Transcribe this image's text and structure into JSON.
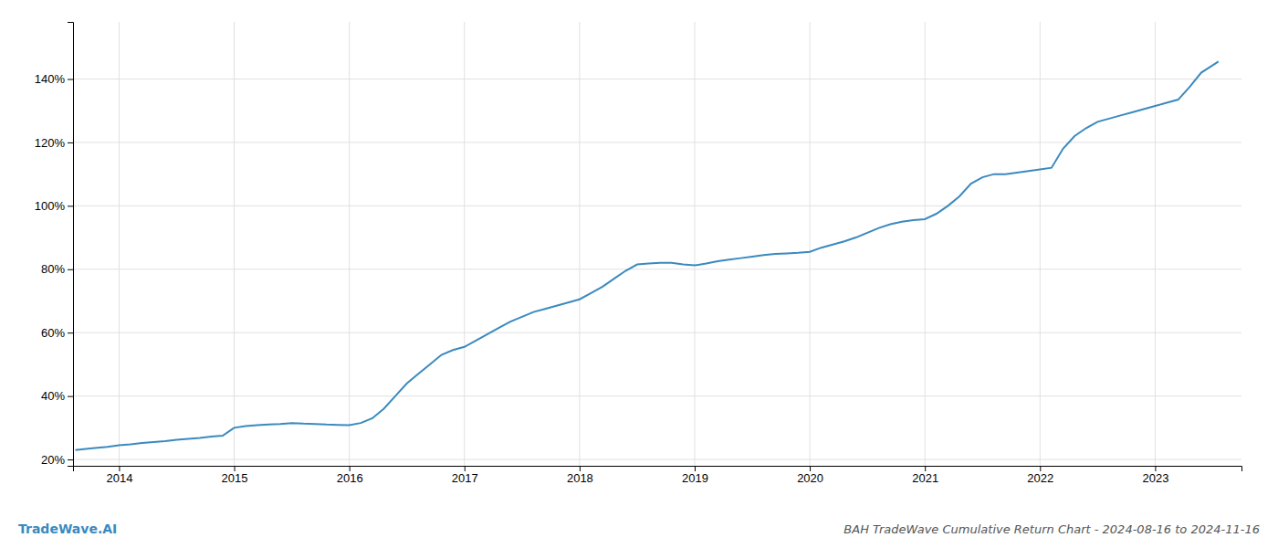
{
  "chart_data": {
    "type": "line",
    "title": "BAH TradeWave Cumulative Return Chart - 2024-08-16 to 2024-11-16",
    "annotations": [
      "TradeWave.AI"
    ],
    "color": "#3a8abf",
    "grid": true,
    "x": [
      2013.62,
      2013.75,
      2013.9,
      2014.0,
      2014.1,
      2014.2,
      2014.3,
      2014.4,
      2014.5,
      2014.6,
      2014.7,
      2014.8,
      2014.9,
      2015.0,
      2015.1,
      2015.2,
      2015.3,
      2015.4,
      2015.5,
      2015.6,
      2015.7,
      2015.8,
      2015.9,
      2016.0,
      2016.1,
      2016.2,
      2016.3,
      2016.4,
      2016.5,
      2016.6,
      2016.7,
      2016.8,
      2016.9,
      2017.0,
      2017.1,
      2017.2,
      2017.3,
      2017.4,
      2017.5,
      2017.6,
      2017.7,
      2017.8,
      2017.9,
      2018.0,
      2018.1,
      2018.2,
      2018.3,
      2018.4,
      2018.5,
      2018.6,
      2018.7,
      2018.8,
      2018.9,
      2019.0,
      2019.1,
      2019.2,
      2019.3,
      2019.4,
      2019.5,
      2019.6,
      2019.7,
      2019.8,
      2019.9,
      2020.0,
      2020.1,
      2020.2,
      2020.3,
      2020.4,
      2020.5,
      2020.6,
      2020.7,
      2020.8,
      2020.9,
      2021.0,
      2021.1,
      2021.2,
      2021.3,
      2021.4,
      2021.5,
      2021.6,
      2021.7,
      2021.8,
      2021.9,
      2022.0,
      2022.1,
      2022.2,
      2022.3,
      2022.4,
      2022.5,
      2022.6,
      2022.7,
      2022.8,
      2022.9,
      2023.0,
      2023.1,
      2023.2,
      2023.3,
      2023.4,
      2023.55
    ],
    "values": [
      0.23,
      0.235,
      0.24,
      0.245,
      0.248,
      0.252,
      0.255,
      0.258,
      0.262,
      0.265,
      0.268,
      0.272,
      0.275,
      0.3,
      0.305,
      0.308,
      0.31,
      0.312,
      0.315,
      0.313,
      0.312,
      0.31,
      0.309,
      0.308,
      0.315,
      0.33,
      0.36,
      0.4,
      0.44,
      0.47,
      0.5,
      0.53,
      0.545,
      0.555,
      0.575,
      0.595,
      0.615,
      0.635,
      0.65,
      0.665,
      0.675,
      0.685,
      0.695,
      0.705,
      0.725,
      0.745,
      0.77,
      0.795,
      0.815,
      0.818,
      0.82,
      0.82,
      0.815,
      0.812,
      0.818,
      0.825,
      0.83,
      0.835,
      0.84,
      0.845,
      0.848,
      0.85,
      0.852,
      0.855,
      0.868,
      0.878,
      0.888,
      0.9,
      0.915,
      0.93,
      0.942,
      0.95,
      0.955,
      0.958,
      0.975,
      1.0,
      1.03,
      1.07,
      1.09,
      1.1,
      1.1,
      1.105,
      1.11,
      1.115,
      1.12,
      1.18,
      1.22,
      1.245,
      1.265,
      1.275,
      1.285,
      1.295,
      1.305,
      1.315,
      1.325,
      1.335,
      1.375,
      1.42,
      1.455
    ],
    "xlim": [
      2013.6,
      2023.75
    ],
    "xticks": [
      2014,
      2015,
      2016,
      2017,
      2018,
      2019,
      2020,
      2021,
      2022,
      2023
    ],
    "ylim": [
      0.18,
      1.58
    ],
    "yticks": [
      {
        "value": 0.2,
        "label": "20%"
      },
      {
        "value": 0.4,
        "label": "40%"
      },
      {
        "value": 0.6,
        "label": "60%"
      },
      {
        "value": 0.8,
        "label": "80%"
      },
      {
        "value": 1.0,
        "label": "100%"
      },
      {
        "value": 1.2,
        "label": "120%"
      },
      {
        "value": 1.4,
        "label": "140%"
      }
    ]
  }
}
